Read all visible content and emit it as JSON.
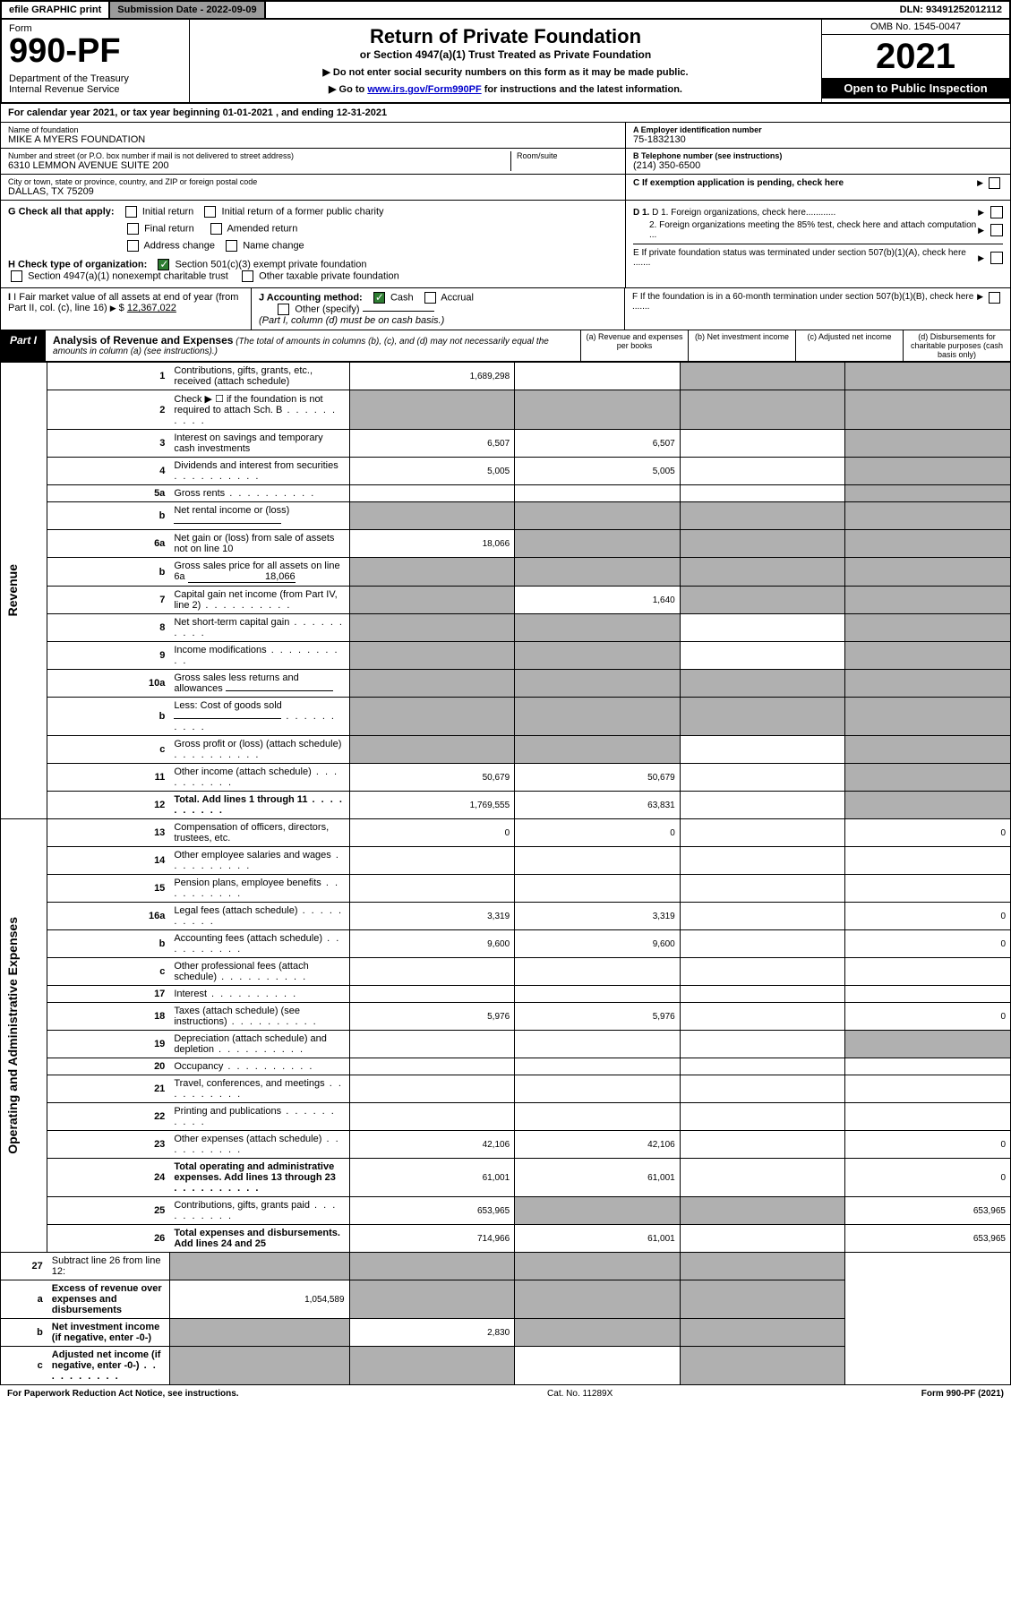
{
  "top": {
    "efile": "efile GRAPHIC print",
    "submission": "Submission Date - 2022-09-09",
    "dln": "DLN: 93491252012112"
  },
  "header": {
    "form_label": "Form",
    "form_no": "990-PF",
    "dept": "Department of the Treasury\nInternal Revenue Service",
    "title": "Return of Private Foundation",
    "subtitle": "or Section 4947(a)(1) Trust Treated as Private Foundation",
    "note1": "▶ Do not enter social security numbers on this form as it may be made public.",
    "note2_pre": "▶ Go to ",
    "note2_link": "www.irs.gov/Form990PF",
    "note2_post": " for instructions and the latest information.",
    "omb": "OMB No. 1545-0047",
    "year": "2021",
    "open": "Open to Public Inspection"
  },
  "calyear": "For calendar year 2021, or tax year beginning 01-01-2021             , and ending 12-31-2021",
  "id": {
    "name_lbl": "Name of foundation",
    "name": "MIKE A MYERS FOUNDATION",
    "addr_lbl": "Number and street (or P.O. box number if mail is not delivered to street address)",
    "addr": "6310 LEMMON AVENUE SUITE 200",
    "room_lbl": "Room/suite",
    "city_lbl": "City or town, state or province, country, and ZIP or foreign postal code",
    "city": "DALLAS, TX  75209",
    "a_lbl": "A Employer identification number",
    "a_val": "75-1832130",
    "b_lbl": "B Telephone number (see instructions)",
    "b_val": "(214) 350-6500",
    "c_lbl": "C If exemption application is pending, check here",
    "d1": "D 1. Foreign organizations, check here............",
    "d2": "2. Foreign organizations meeting the 85% test, check here and attach computation ...",
    "e": "E  If private foundation status was terminated under section 507(b)(1)(A), check here .......",
    "f": "F  If the foundation is in a 60-month termination under section 507(b)(1)(B), check here .......",
    "g": "G Check all that apply:",
    "g_opts": [
      "Initial return",
      "Initial return of a former public charity",
      "Final return",
      "Amended return",
      "Address change",
      "Name change"
    ],
    "h": "H Check type of organization:",
    "h1": "Section 501(c)(3) exempt private foundation",
    "h2": "Section 4947(a)(1) nonexempt charitable trust",
    "h3": "Other taxable private foundation",
    "i": "I Fair market value of all assets at end of year (from Part II, col. (c), line 16)",
    "i_val": "12,367,022",
    "j": "J Accounting method:",
    "j_cash": "Cash",
    "j_accrual": "Accrual",
    "j_other": "Other (specify)",
    "j_note": "(Part I, column (d) must be on cash basis.)"
  },
  "part1": {
    "tag": "Part I",
    "title": "Analysis of Revenue and Expenses",
    "title_note": "(The total of amounts in columns (b), (c), and (d) may not necessarily equal the amounts in column (a) (see instructions).)",
    "col_a": "(a)  Revenue and expenses per books",
    "col_b": "(b)  Net investment income",
    "col_c": "(c)  Adjusted net income",
    "col_d": "(d)  Disbursements for charitable purposes (cash basis only)"
  },
  "section_labels": {
    "revenue": "Revenue",
    "expenses": "Operating and Administrative Expenses"
  },
  "rows": [
    {
      "n": "1",
      "d": "Contributions, gifts, grants, etc., received (attach schedule)",
      "a": "1,689,298",
      "b": "",
      "c": "s",
      "dcol": "s"
    },
    {
      "n": "2",
      "d": "Check ▶ ☐ if the foundation is not required to attach Sch. B",
      "a": "s",
      "b": "s",
      "c": "s",
      "dcol": "s",
      "dots": true
    },
    {
      "n": "3",
      "d": "Interest on savings and temporary cash investments",
      "a": "6,507",
      "b": "6,507",
      "c": "",
      "dcol": "s"
    },
    {
      "n": "4",
      "d": "Dividends and interest from securities",
      "a": "5,005",
      "b": "5,005",
      "c": "",
      "dcol": "s",
      "dots": true
    },
    {
      "n": "5a",
      "d": "Gross rents",
      "a": "",
      "b": "",
      "c": "",
      "dcol": "s",
      "dots": true
    },
    {
      "n": "b",
      "d": "Net rental income or (loss)",
      "a": "s",
      "b": "s",
      "c": "s",
      "dcol": "s",
      "inline": true
    },
    {
      "n": "6a",
      "d": "Net gain or (loss) from sale of assets not on line 10",
      "a": "18,066",
      "b": "s",
      "c": "s",
      "dcol": "s"
    },
    {
      "n": "b",
      "d": "Gross sales price for all assets on line 6a",
      "a": "s",
      "b": "s",
      "c": "s",
      "dcol": "s",
      "inline": true,
      "inline_val": "18,066"
    },
    {
      "n": "7",
      "d": "Capital gain net income (from Part IV, line 2)",
      "a": "s",
      "b": "1,640",
      "c": "s",
      "dcol": "s",
      "dots": true
    },
    {
      "n": "8",
      "d": "Net short-term capital gain",
      "a": "s",
      "b": "s",
      "c": "",
      "dcol": "s",
      "dots": true
    },
    {
      "n": "9",
      "d": "Income modifications",
      "a": "s",
      "b": "s",
      "c": "",
      "dcol": "s",
      "dots": true
    },
    {
      "n": "10a",
      "d": "Gross sales less returns and allowances",
      "a": "s",
      "b": "s",
      "c": "s",
      "dcol": "s",
      "inline": true
    },
    {
      "n": "b",
      "d": "Less: Cost of goods sold",
      "a": "s",
      "b": "s",
      "c": "s",
      "dcol": "s",
      "inline": true,
      "dots": true
    },
    {
      "n": "c",
      "d": "Gross profit or (loss) (attach schedule)",
      "a": "s",
      "b": "s",
      "c": "",
      "dcol": "s",
      "dots": true
    },
    {
      "n": "11",
      "d": "Other income (attach schedule)",
      "a": "50,679",
      "b": "50,679",
      "c": "",
      "dcol": "s",
      "dots": true
    },
    {
      "n": "12",
      "d": "Total. Add lines 1 through 11",
      "a": "1,769,555",
      "b": "63,831",
      "c": "",
      "dcol": "s",
      "bold": true,
      "dots": true
    }
  ],
  "exp_rows": [
    {
      "n": "13",
      "d": "Compensation of officers, directors, trustees, etc.",
      "a": "0",
      "b": "0",
      "c": "",
      "dcol": "0"
    },
    {
      "n": "14",
      "d": "Other employee salaries and wages",
      "a": "",
      "b": "",
      "c": "",
      "dcol": "",
      "dots": true
    },
    {
      "n": "15",
      "d": "Pension plans, employee benefits",
      "a": "",
      "b": "",
      "c": "",
      "dcol": "",
      "dots": true
    },
    {
      "n": "16a",
      "d": "Legal fees (attach schedule)",
      "a": "3,319",
      "b": "3,319",
      "c": "",
      "dcol": "0",
      "dots": true
    },
    {
      "n": "b",
      "d": "Accounting fees (attach schedule)",
      "a": "9,600",
      "b": "9,600",
      "c": "",
      "dcol": "0",
      "dots": true
    },
    {
      "n": "c",
      "d": "Other professional fees (attach schedule)",
      "a": "",
      "b": "",
      "c": "",
      "dcol": "",
      "dots": true
    },
    {
      "n": "17",
      "d": "Interest",
      "a": "",
      "b": "",
      "c": "",
      "dcol": "",
      "dots": true
    },
    {
      "n": "18",
      "d": "Taxes (attach schedule) (see instructions)",
      "a": "5,976",
      "b": "5,976",
      "c": "",
      "dcol": "0",
      "dots": true
    },
    {
      "n": "19",
      "d": "Depreciation (attach schedule) and depletion",
      "a": "",
      "b": "",
      "c": "",
      "dcol": "s",
      "dots": true
    },
    {
      "n": "20",
      "d": "Occupancy",
      "a": "",
      "b": "",
      "c": "",
      "dcol": "",
      "dots": true
    },
    {
      "n": "21",
      "d": "Travel, conferences, and meetings",
      "a": "",
      "b": "",
      "c": "",
      "dcol": "",
      "dots": true
    },
    {
      "n": "22",
      "d": "Printing and publications",
      "a": "",
      "b": "",
      "c": "",
      "dcol": "",
      "dots": true
    },
    {
      "n": "23",
      "d": "Other expenses (attach schedule)",
      "a": "42,106",
      "b": "42,106",
      "c": "",
      "dcol": "0",
      "dots": true
    },
    {
      "n": "24",
      "d": "Total operating and administrative expenses. Add lines 13 through 23",
      "a": "61,001",
      "b": "61,001",
      "c": "",
      "dcol": "0",
      "bold": true,
      "dots": true
    },
    {
      "n": "25",
      "d": "Contributions, gifts, grants paid",
      "a": "653,965",
      "b": "s",
      "c": "s",
      "dcol": "653,965",
      "dots": true
    },
    {
      "n": "26",
      "d": "Total expenses and disbursements. Add lines 24 and 25",
      "a": "714,966",
      "b": "61,001",
      "c": "",
      "dcol": "653,965",
      "bold": true
    }
  ],
  "net_rows": [
    {
      "n": "27",
      "d": "Subtract line 26 from line 12:",
      "a": "s",
      "b": "s",
      "c": "s",
      "dcol": "s"
    },
    {
      "n": "a",
      "d": "Excess of revenue over expenses and disbursements",
      "a": "1,054,589",
      "b": "s",
      "c": "s",
      "dcol": "s",
      "bold": true
    },
    {
      "n": "b",
      "d": "Net investment income (if negative, enter -0-)",
      "a": "s",
      "b": "2,830",
      "c": "s",
      "dcol": "s",
      "bold": true
    },
    {
      "n": "c",
      "d": "Adjusted net income (if negative, enter -0-)",
      "a": "s",
      "b": "s",
      "c": "",
      "dcol": "s",
      "bold": true,
      "dots": true
    }
  ],
  "footer": {
    "left": "For Paperwork Reduction Act Notice, see instructions.",
    "mid": "Cat. No. 11289X",
    "right": "Form 990-PF (2021)"
  }
}
